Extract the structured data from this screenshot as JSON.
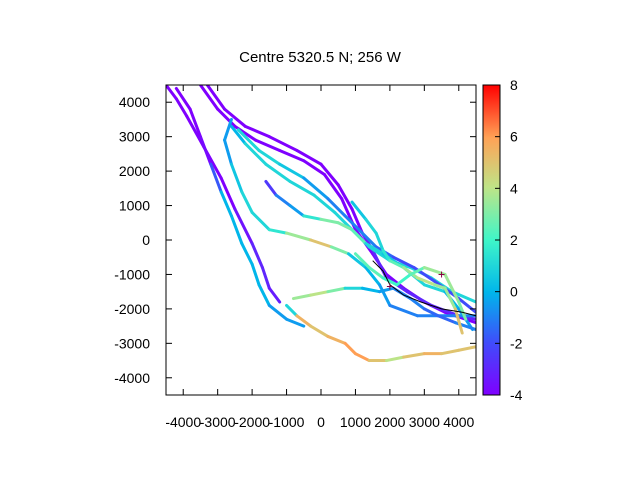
{
  "chart_data": {
    "type": "scatter",
    "title": "Centre 5320.5 N; 256  W",
    "xlabel": "",
    "ylabel": "",
    "xlim": [
      -4500,
      4500
    ],
    "ylim": [
      -4500,
      4500
    ],
    "x_ticks": [
      -4000,
      -3000,
      -2000,
      -1000,
      0,
      1000,
      2000,
      3000,
      4000
    ],
    "x_tick_labels": [
      "-4000",
      "-3000",
      "-2000",
      "-1000",
      "0",
      "1000",
      "2000",
      "3000",
      "4000"
    ],
    "y_ticks": [
      -4000,
      -3000,
      -2000,
      -1000,
      0,
      1000,
      2000,
      3000,
      4000
    ],
    "y_tick_labels": [
      "-4000",
      "-3000",
      "-2000",
      "-1000",
      "0",
      "1000",
      "2000",
      "3000",
      "4000"
    ],
    "colorbar": {
      "range": [
        -4,
        8
      ],
      "ticks": [
        -4,
        -2,
        0,
        2,
        4,
        6,
        8
      ],
      "tick_labels": [
        "-4",
        "-2",
        "0",
        "2",
        "4",
        "6",
        "8"
      ],
      "palette": "rainbow"
    },
    "grid": false,
    "tracks": [
      {
        "points": [
          [
            -4500,
            4500,
            -4
          ],
          [
            -4200,
            4100,
            -4
          ],
          [
            -3900,
            3600,
            -4
          ],
          [
            -3400,
            2700,
            -4
          ],
          [
            -2900,
            1800,
            -4
          ],
          [
            -2500,
            900,
            -4
          ],
          [
            -2000,
            -100,
            -3
          ],
          [
            -1700,
            -800,
            -3
          ],
          [
            -1500,
            -1400,
            -3
          ],
          [
            -1200,
            -1800,
            -3.5
          ]
        ]
      },
      {
        "points": [
          [
            -4200,
            4400,
            -4
          ],
          [
            -3800,
            3800,
            -4
          ],
          [
            -3500,
            3000,
            -4
          ],
          [
            -3200,
            2200,
            -3.5
          ],
          [
            -2900,
            1400,
            0
          ],
          [
            -2600,
            700,
            0
          ],
          [
            -2300,
            -100,
            0
          ],
          [
            -2000,
            -700,
            0
          ],
          [
            -1800,
            -1300,
            0
          ],
          [
            -1500,
            -1900,
            0
          ],
          [
            -1000,
            -2300,
            -1
          ],
          [
            -500,
            -2500,
            0
          ]
        ]
      },
      {
        "points": [
          [
            -3500,
            4500,
            -4
          ],
          [
            -3000,
            3800,
            -4
          ],
          [
            -2500,
            3300,
            -4
          ],
          [
            -1900,
            2900,
            -4
          ],
          [
            -1200,
            2600,
            -4
          ],
          [
            -500,
            2300,
            -4
          ],
          [
            100,
            1900,
            -4
          ],
          [
            600,
            1200,
            -4
          ],
          [
            1000,
            300,
            -4
          ],
          [
            1500,
            -400,
            -4
          ],
          [
            1900,
            -1000,
            -4
          ],
          [
            2400,
            -1400,
            -4
          ],
          [
            3000,
            -1800,
            -4
          ],
          [
            3600,
            -2100,
            -4
          ],
          [
            4500,
            -2400,
            -4
          ]
        ]
      },
      {
        "points": [
          [
            -3300,
            4500,
            -4
          ],
          [
            -2800,
            3800,
            -4
          ],
          [
            -2200,
            3300,
            -4
          ],
          [
            -1500,
            3000,
            -4
          ],
          [
            -700,
            2600,
            -4
          ],
          [
            0,
            2200,
            -4
          ],
          [
            500,
            1600,
            -4
          ],
          [
            900,
            900,
            -4
          ],
          [
            1200,
            200,
            -4
          ],
          [
            1500,
            -300,
            -3
          ],
          [
            1900,
            -1100,
            -3
          ],
          [
            2500,
            -1500,
            -3
          ],
          [
            3200,
            -1900,
            -3
          ],
          [
            4000,
            -2200,
            -3
          ],
          [
            4500,
            -2300,
            -3
          ]
        ]
      },
      {
        "points": [
          [
            -2600,
            3300,
            -1
          ],
          [
            -2200,
            2800,
            1
          ],
          [
            -1600,
            2200,
            1
          ],
          [
            -900,
            1700,
            1
          ],
          [
            -200,
            1300,
            1
          ],
          [
            400,
            800,
            1
          ],
          [
            900,
            300,
            1
          ],
          [
            1400,
            -200,
            1
          ],
          [
            2000,
            -600,
            1
          ],
          [
            2600,
            -800,
            1
          ],
          [
            3200,
            -1100,
            1
          ],
          [
            3800,
            -1500,
            1
          ],
          [
            4500,
            -1800,
            1
          ]
        ]
      },
      {
        "points": [
          [
            -2400,
            3200,
            1
          ],
          [
            -1800,
            2600,
            1
          ],
          [
            -1200,
            2200,
            1
          ],
          [
            -500,
            1800,
            0
          ],
          [
            200,
            1200,
            -1
          ],
          [
            700,
            700,
            -1
          ],
          [
            1100,
            300,
            -1
          ],
          [
            1600,
            -200,
            -1
          ],
          [
            2100,
            -500,
            -2
          ],
          [
            2700,
            -800,
            -2
          ],
          [
            3300,
            -1200,
            -2
          ],
          [
            4000,
            -1700,
            -2
          ],
          [
            4500,
            -2100,
            -2
          ]
        ]
      },
      {
        "points": [
          [
            -2600,
            3500,
            0
          ],
          [
            -2800,
            2900,
            -1
          ],
          [
            -2600,
            2200,
            0
          ],
          [
            -2300,
            1400,
            1
          ],
          [
            -2000,
            800,
            1
          ],
          [
            -1500,
            300,
            1
          ],
          [
            -1000,
            200,
            2
          ],
          [
            -300,
            0,
            5
          ],
          [
            300,
            -200,
            5
          ],
          [
            800,
            -400,
            1
          ],
          [
            1300,
            -800,
            0
          ],
          [
            1700,
            -1300,
            0
          ],
          [
            2000,
            -1900,
            -1
          ],
          [
            2800,
            -2200,
            -1
          ],
          [
            3600,
            -2200,
            -1
          ],
          [
            4500,
            -2200,
            -1
          ]
        ]
      },
      {
        "points": [
          [
            -1600,
            1700,
            -4
          ],
          [
            -1300,
            1300,
            -1
          ],
          [
            -900,
            1000,
            -1
          ],
          [
            -500,
            700,
            0
          ],
          [
            0,
            600,
            3
          ],
          [
            500,
            500,
            3
          ],
          [
            900,
            300,
            3
          ],
          [
            1300,
            -100,
            2
          ],
          [
            1800,
            -400,
            0
          ],
          [
            2400,
            -800,
            1
          ],
          [
            3000,
            -1300,
            1
          ],
          [
            3600,
            -1500,
            1
          ],
          [
            4000,
            -2000,
            -1
          ],
          [
            4400,
            -2600,
            0
          ]
        ]
      },
      {
        "points": [
          [
            -800,
            -1700,
            3
          ],
          [
            -300,
            -1600,
            4
          ],
          [
            200,
            -1500,
            4
          ],
          [
            700,
            -1400,
            2
          ],
          [
            1200,
            -1400,
            0
          ],
          [
            1700,
            -1500,
            0
          ],
          [
            2100,
            -1400,
            -1
          ],
          [
            2600,
            -1700,
            -1
          ],
          [
            3000,
            -2000,
            -1
          ],
          [
            3400,
            -2200,
            -2
          ],
          [
            3900,
            -2400,
            -1
          ],
          [
            4500,
            -2600,
            -1
          ]
        ]
      },
      {
        "points": [
          [
            -1000,
            -1900,
            -4
          ],
          [
            -700,
            -2200,
            6
          ],
          [
            -300,
            -2500,
            5
          ],
          [
            200,
            -2800,
            5
          ],
          [
            700,
            -3000,
            6
          ],
          [
            1000,
            -3300,
            6
          ],
          [
            1400,
            -3500,
            6
          ],
          [
            1900,
            -3500,
            4
          ],
          [
            2400,
            -3400,
            4
          ],
          [
            3000,
            -3300,
            6
          ],
          [
            3500,
            -3300,
            5
          ],
          [
            4000,
            -3200,
            5
          ],
          [
            4500,
            -3100,
            5
          ]
        ]
      },
      {
        "points": [
          [
            900,
            1100,
            0
          ],
          [
            1300,
            600,
            1
          ],
          [
            1600,
            200,
            1
          ],
          [
            1800,
            -300,
            1
          ],
          [
            2000,
            -600,
            2
          ],
          [
            2400,
            -800,
            3
          ],
          [
            2800,
            -1100,
            4
          ],
          [
            3300,
            -1300,
            4
          ],
          [
            3600,
            -1400,
            3
          ],
          [
            3900,
            -2000,
            4
          ],
          [
            4100,
            -2700,
            6
          ]
        ]
      },
      {
        "points": [
          [
            1000,
            -400,
            2
          ],
          [
            1400,
            -800,
            3
          ],
          [
            1800,
            -1100,
            2
          ],
          [
            2200,
            -1300,
            2
          ],
          [
            2600,
            -1000,
            2
          ],
          [
            3000,
            -800,
            3
          ],
          [
            3600,
            -1000,
            4
          ],
          [
            4000,
            -1800,
            3
          ],
          [
            4200,
            -2300,
            3
          ]
        ]
      }
    ],
    "black_path": [
      [
        1500,
        -600
      ],
      [
        1800,
        -900
      ],
      [
        2000,
        -1300
      ],
      [
        2400,
        -1600
      ],
      [
        2900,
        -1800
      ],
      [
        3500,
        -2000
      ],
      [
        4100,
        -2100
      ],
      [
        4500,
        -2200
      ]
    ],
    "markers": [
      [
        2000,
        -1350
      ],
      [
        3500,
        -1000
      ]
    ]
  }
}
